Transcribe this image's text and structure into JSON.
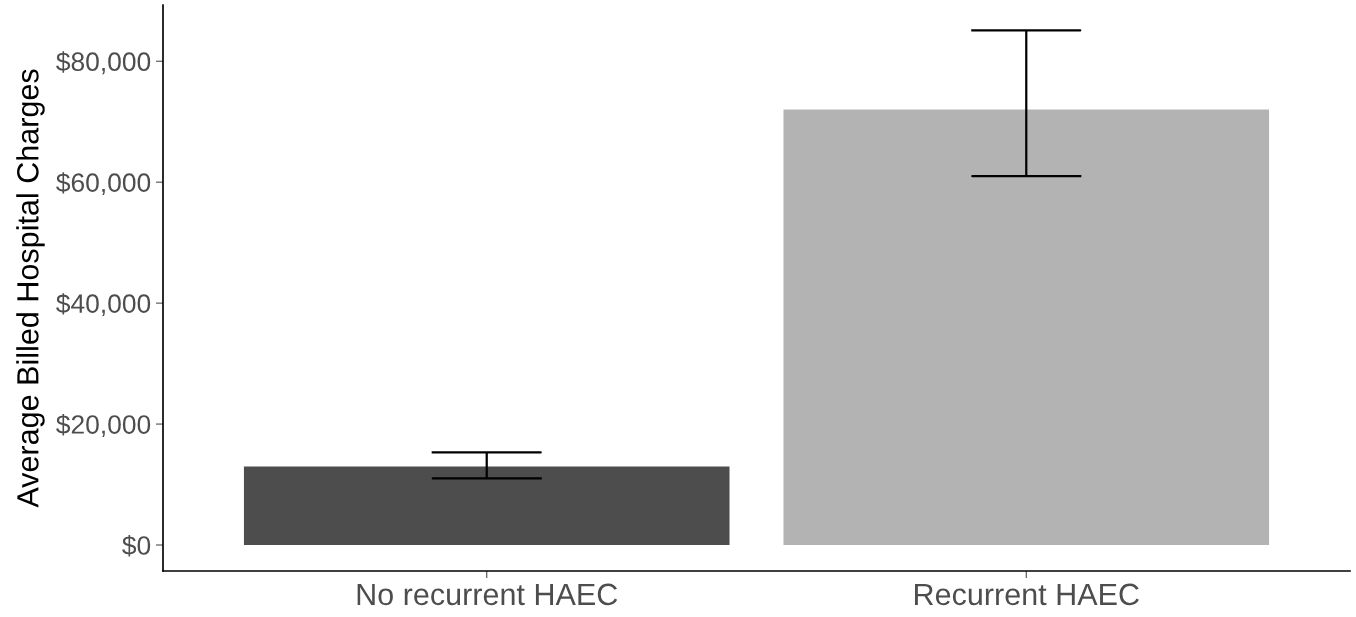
{
  "chart_data": {
    "type": "bar",
    "ylabel": "Average Billed Hospital Charges",
    "categories": [
      "No recurrent HAEC",
      "Recurrent HAEC"
    ],
    "values": [
      13000,
      72000
    ],
    "colors": [
      "#4d4d4d",
      "#b3b3b3"
    ],
    "errors": [
      [
        11000,
        15300
      ],
      [
        61000,
        85100
      ]
    ],
    "ylim": [
      -4300,
      89300
    ],
    "yticks": [
      {
        "value": 0,
        "label": "$0"
      },
      {
        "value": 20000,
        "label": "$20,000"
      },
      {
        "value": 40000,
        "label": "$40,000"
      },
      {
        "value": 60000,
        "label": "$60,000"
      },
      {
        "value": 80000,
        "label": "$80,000"
      }
    ],
    "grid": false
  }
}
